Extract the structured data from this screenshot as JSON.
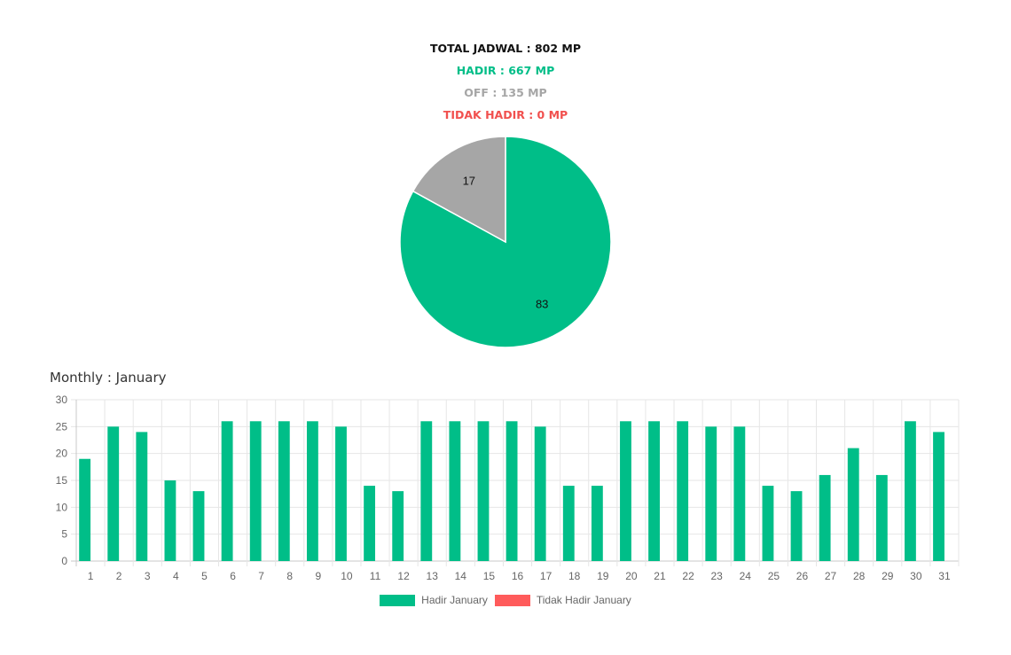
{
  "summary": {
    "total": "TOTAL JADWAL : 802 MP",
    "hadir": "HADIR : 667 MP",
    "off": "OFF : 135 MP",
    "tidak_hadir": "TIDAK HADIR : 0 MP"
  },
  "colors": {
    "hadir": "#00be88",
    "off": "#a6a6a6",
    "tidak_hadir": "#f1504e",
    "legend_tidak_hadir": "#ff5b5b",
    "grid": "#e6e6e6",
    "tick": "#666666"
  },
  "monthly_title": "Monthly : January",
  "chart_data": [
    {
      "type": "pie",
      "labels": [
        "HADIR",
        "OFF"
      ],
      "values": [
        83,
        17
      ],
      "data_labels": [
        "83",
        "17"
      ]
    },
    {
      "type": "bar",
      "categories": [
        "1",
        "2",
        "3",
        "4",
        "5",
        "6",
        "7",
        "8",
        "9",
        "10",
        "11",
        "12",
        "13",
        "14",
        "15",
        "16",
        "17",
        "18",
        "19",
        "20",
        "21",
        "22",
        "23",
        "24",
        "25",
        "26",
        "27",
        "28",
        "29",
        "30",
        "31"
      ],
      "series": [
        {
          "name": "Hadir January",
          "values": [
            19,
            25,
            24,
            15,
            13,
            26,
            26,
            26,
            26,
            25,
            14,
            13,
            26,
            26,
            26,
            26,
            25,
            14,
            14,
            26,
            26,
            26,
            25,
            25,
            14,
            13,
            16,
            21,
            16,
            26,
            24
          ]
        },
        {
          "name": "Tidak Hadir January",
          "values": [
            0,
            0,
            0,
            0,
            0,
            0,
            0,
            0,
            0,
            0,
            0,
            0,
            0,
            0,
            0,
            0,
            0,
            0,
            0,
            0,
            0,
            0,
            0,
            0,
            0,
            0,
            0,
            0,
            0,
            0,
            0
          ]
        }
      ],
      "yticks": [
        "0",
        "5",
        "10",
        "15",
        "20",
        "25",
        "30"
      ],
      "ylim": [
        0,
        30
      ],
      "grid": true,
      "legend": "bottom-center"
    }
  ]
}
